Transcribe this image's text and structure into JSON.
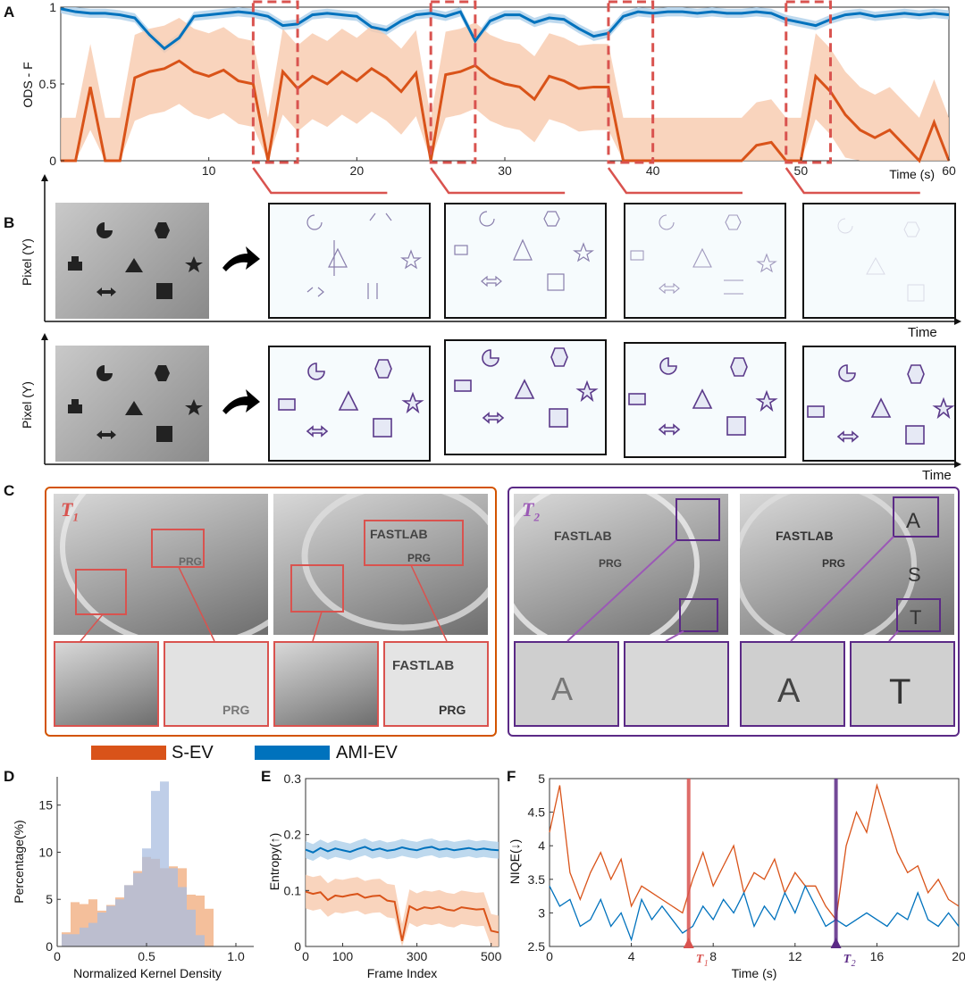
{
  "panels": {
    "A": "A",
    "B": "B",
    "C": "C",
    "D": "D",
    "E": "E",
    "F": "F"
  },
  "colors": {
    "s_ev": "#d95319",
    "ami_ev": "#0072bd",
    "ami_ev_light": "#aed0ea",
    "s_ev_light": "#f7c9ad",
    "red_box": "#d9534f",
    "purple": "#5b2a86",
    "hist_purple": "#7b6a9e",
    "hist_orange": "#f0a97a",
    "hist_blue": "#a9bde0"
  },
  "legend": {
    "s_ev": "S-EV",
    "ami_ev": "AMI-EV"
  },
  "panel_b": {
    "ylabel": "Pixel (Y)",
    "xlabel": "Time",
    "ylabel2": "Pixel (Y)",
    "xlabel2": "Time"
  },
  "panel_c": {
    "t1": "T",
    "t1_sub": "1",
    "t2": "T",
    "t2_sub": "2",
    "logo_text": "FASTLAB",
    "prg_text": "PRG",
    "letters": [
      "A",
      "S",
      "T"
    ]
  },
  "chart_data": [
    {
      "id": "A",
      "type": "line",
      "title": "",
      "xlabel": "Time (s)",
      "ylabel": "ODS - F",
      "xlim": [
        0,
        60
      ],
      "ylim": [
        0,
        1
      ],
      "xticks": [
        10,
        20,
        30,
        40,
        50,
        60
      ],
      "yticks": [
        0,
        0.5,
        1
      ],
      "ytick_labels": [
        "0",
        "0.5",
        "1"
      ],
      "x": [
        0,
        1,
        2,
        3,
        4,
        5,
        6,
        7,
        8,
        9,
        10,
        11,
        12,
        13,
        14,
        15,
        16,
        17,
        18,
        19,
        20,
        21,
        22,
        23,
        24,
        25,
        26,
        27,
        28,
        29,
        30,
        31,
        32,
        33,
        34,
        35,
        36,
        37,
        38,
        39,
        40,
        41,
        42,
        43,
        44,
        45,
        46,
        47,
        48,
        49,
        50,
        51,
        52,
        53,
        54,
        55,
        56,
        57,
        58,
        59,
        60
      ],
      "series": [
        {
          "name": "AMI-EV",
          "values": [
            0.99,
            0.97,
            0.96,
            0.96,
            0.95,
            0.93,
            0.82,
            0.73,
            0.8,
            0.94,
            0.95,
            0.96,
            0.97,
            0.96,
            0.94,
            0.88,
            0.89,
            0.95,
            0.96,
            0.95,
            0.94,
            0.87,
            0.85,
            0.91,
            0.95,
            0.96,
            0.94,
            0.97,
            0.78,
            0.91,
            0.95,
            0.95,
            0.9,
            0.93,
            0.92,
            0.86,
            0.81,
            0.83,
            0.94,
            0.97,
            0.96,
            0.97,
            0.97,
            0.96,
            0.97,
            0.96,
            0.96,
            0.97,
            0.96,
            0.92,
            0.9,
            0.88,
            0.92,
            0.95,
            0.96,
            0.94,
            0.95,
            0.96,
            0.95,
            0.96,
            0.95
          ]
        },
        {
          "name": "S-EV",
          "values": [
            0,
            0,
            0.48,
            0,
            0,
            0.54,
            0.58,
            0.6,
            0.65,
            0.58,
            0.55,
            0.59,
            0.52,
            0.5,
            0,
            0.58,
            0.47,
            0.55,
            0.5,
            0.58,
            0.52,
            0.6,
            0.54,
            0.45,
            0.57,
            0,
            0.56,
            0.58,
            0.62,
            0.54,
            0.5,
            0.48,
            0.4,
            0.55,
            0.52,
            0.47,
            0.48,
            0.48,
            0,
            0,
            0,
            0,
            0,
            0,
            0,
            0,
            0,
            0.1,
            0.12,
            0,
            0,
            0.55,
            0.45,
            0.3,
            0.2,
            0.15,
            0.2,
            0.1,
            0,
            0.25,
            0
          ]
        }
      ],
      "highlight_windows": [
        [
          13,
          16
        ],
        [
          25,
          28
        ],
        [
          37,
          40
        ],
        [
          49,
          52
        ]
      ]
    },
    {
      "id": "D",
      "type": "bar",
      "title": "",
      "xlabel": "Normalized Kernel Density",
      "ylabel": "Percentage(%)",
      "xlim": [
        0,
        1.1
      ],
      "ylim": [
        0,
        18
      ],
      "xticks": [
        0,
        0.5,
        1
      ],
      "xtick_labels": [
        "0",
        "0.5",
        "1.0"
      ],
      "yticks": [
        0,
        5,
        10,
        15
      ],
      "categories": [
        0.05,
        0.1,
        0.15,
        0.2,
        0.25,
        0.3,
        0.35,
        0.4,
        0.45,
        0.5,
        0.55,
        0.6,
        0.65,
        0.7,
        0.75,
        0.8,
        0.85
      ],
      "series": [
        {
          "name": "S-EV",
          "values": [
            1.5,
            4.7,
            4.5,
            5.0,
            3.8,
            4.4,
            5.2,
            6.5,
            8.0,
            9.5,
            9.3,
            8.3,
            8.5,
            8.3,
            5.5,
            5.4,
            4.0
          ]
        },
        {
          "name": "AMI-EV",
          "values": [
            1.3,
            1.3,
            2.0,
            2.5,
            3.6,
            4.3,
            5.0,
            6.5,
            7.8,
            10.4,
            16.5,
            17.5,
            8.3,
            6.3,
            3.9,
            1.2,
            0
          ]
        }
      ]
    },
    {
      "id": "E",
      "type": "line",
      "title": "",
      "xlabel": "Frame Index",
      "ylabel": "Entropy(↑)",
      "xlim": [
        0,
        520
      ],
      "ylim": [
        0,
        0.3
      ],
      "xticks": [
        0,
        100,
        300,
        500
      ],
      "yticks": [
        0,
        0.1,
        0.2,
        0.3
      ],
      "ytick_labels": [
        "0",
        "0.1",
        "0.2",
        "0.3"
      ],
      "x": [
        0,
        20,
        40,
        60,
        80,
        100,
        120,
        140,
        160,
        180,
        200,
        220,
        240,
        260,
        280,
        300,
        320,
        340,
        360,
        380,
        400,
        420,
        440,
        460,
        480,
        500,
        520
      ],
      "series": [
        {
          "name": "AMI-EV",
          "values": [
            0.173,
            0.168,
            0.176,
            0.17,
            0.175,
            0.172,
            0.169,
            0.174,
            0.178,
            0.172,
            0.175,
            0.171,
            0.173,
            0.177,
            0.174,
            0.172,
            0.176,
            0.178,
            0.173,
            0.175,
            0.172,
            0.174,
            0.176,
            0.173,
            0.175,
            0.173,
            0.172
          ]
        },
        {
          "name": "S-EV",
          "values": [
            0.098,
            0.094,
            0.097,
            0.083,
            0.091,
            0.089,
            0.092,
            0.094,
            0.087,
            0.09,
            0.091,
            0.082,
            0.08,
            0.01,
            0.072,
            0.065,
            0.07,
            0.068,
            0.071,
            0.066,
            0.064,
            0.07,
            0.068,
            0.066,
            0.067,
            0.028,
            0.025
          ]
        }
      ]
    },
    {
      "id": "F",
      "type": "line",
      "title": "",
      "xlabel": "Time (s)",
      "ylabel": "NIQE(↓)",
      "xlim": [
        0,
        20
      ],
      "ylim": [
        2.5,
        5
      ],
      "xticks": [
        0,
        4,
        8,
        12,
        16,
        20
      ],
      "yticks": [
        2.5,
        3,
        3.5,
        4,
        4.5,
        5
      ],
      "ytick_labels": [
        "2.5",
        "3",
        "3.5",
        "4",
        "4.5",
        "5"
      ],
      "markers": [
        {
          "label": "T",
          "sub": "1",
          "x": 6.8
        },
        {
          "label": "T",
          "sub": "2",
          "x": 14.0
        }
      ],
      "x": [
        0,
        0.5,
        1,
        1.5,
        2,
        2.5,
        3,
        3.5,
        4,
        4.5,
        5,
        5.5,
        6,
        6.5,
        7,
        7.5,
        8,
        8.5,
        9,
        9.5,
        10,
        10.5,
        11,
        11.5,
        12,
        12.5,
        13,
        13.5,
        14,
        14.5,
        15,
        15.5,
        16,
        16.5,
        17,
        17.5,
        18,
        18.5,
        19,
        19.5,
        20
      ],
      "series": [
        {
          "name": "S-EV",
          "values": [
            4.2,
            4.9,
            3.6,
            3.2,
            3.6,
            3.9,
            3.5,
            3.8,
            3.1,
            3.4,
            3.3,
            3.2,
            3.1,
            3.0,
            3.5,
            3.9,
            3.4,
            3.7,
            4.0,
            3.3,
            3.6,
            3.5,
            3.8,
            3.3,
            3.6,
            3.4,
            3.4,
            3.1,
            2.9,
            4.0,
            4.5,
            4.2,
            4.9,
            4.4,
            3.9,
            3.6,
            3.7,
            3.3,
            3.5,
            3.2,
            3.1
          ]
        },
        {
          "name": "AMI-EV",
          "values": [
            3.4,
            3.1,
            3.2,
            2.8,
            2.9,
            3.2,
            2.8,
            3.0,
            2.6,
            3.2,
            2.9,
            3.1,
            2.9,
            2.7,
            2.8,
            3.1,
            2.9,
            3.2,
            3.0,
            3.3,
            2.8,
            3.1,
            2.9,
            3.3,
            3.0,
            3.4,
            3.1,
            2.8,
            2.9,
            2.8,
            2.9,
            3.0,
            2.9,
            2.8,
            3.0,
            2.9,
            3.3,
            2.9,
            2.8,
            3.0,
            2.8
          ]
        }
      ]
    }
  ]
}
